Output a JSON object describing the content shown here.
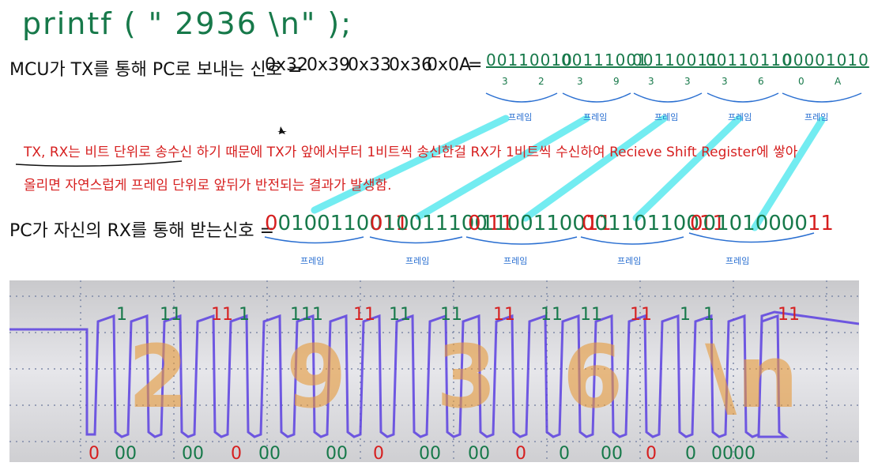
{
  "code": "printf ( \" 2936 \\n\" );",
  "sent": {
    "label": "MCU가 TX를 통해 PC로 보내는 신호 =",
    "hex": [
      "0x32",
      "0x39",
      "0x33",
      "0x36",
      "0x0A"
    ],
    "equals": "=",
    "frames": [
      {
        "bits": "00110010",
        "high": "3",
        "low": "2",
        "caption": "프레임"
      },
      {
        "bits": "00111001",
        "high": "3",
        "low": "9",
        "caption": "프레임"
      },
      {
        "bits": "00110011",
        "high": "3",
        "low": "3",
        "caption": "프레임"
      },
      {
        "bits": "00110110",
        "high": "3",
        "low": "6",
        "caption": "프레임"
      },
      {
        "bits": "00001010",
        "high": "0",
        "low": "A",
        "caption": "프레임"
      }
    ]
  },
  "note": [
    "TX, RX는 비트 단위로 송수신 하기 때문에 TX가 앞에서부터 1비트씩 송신한걸 RX가 1비트씩 수신하여 Recieve Shift Register에 쌓아",
    "올리면 자연스럽게 프레임 단위로 앞뒤가 반전되는 결과가 발생함."
  ],
  "received": {
    "label": "PC가 자신의 RX를 통해 받는신호 =",
    "frames": [
      {
        "start": "0",
        "data": "01001100",
        "stop": "11",
        "caption": "프레임"
      },
      {
        "start": "0",
        "data": "10011100",
        "stop": "11",
        "caption": "프레임"
      },
      {
        "start": "0",
        "data": "11001100",
        "stop": "11",
        "caption": "프레임"
      },
      {
        "start": "0",
        "data": "01101100",
        "stop": "11",
        "caption": "프레임"
      },
      {
        "start": "0",
        "data": "01010000",
        "stop": "11",
        "caption": "프레임"
      }
    ]
  },
  "scope": {
    "top_marks": [
      {
        "text": "1",
        "color": "#17794a"
      },
      {
        "text": "11",
        "color": "#17794a"
      },
      {
        "text": "11",
        "color": "#d61f1f"
      },
      {
        "text": "1",
        "color": "#17794a"
      },
      {
        "text": "111",
        "color": "#17794a"
      },
      {
        "text": "11",
        "color": "#d61f1f"
      },
      {
        "text": "11",
        "color": "#17794a"
      },
      {
        "text": "11",
        "color": "#17794a"
      },
      {
        "text": "11",
        "color": "#d61f1f"
      },
      {
        "text": "11",
        "color": "#17794a"
      },
      {
        "text": "11",
        "color": "#17794a"
      },
      {
        "text": "11",
        "color": "#d61f1f"
      },
      {
        "text": "1",
        "color": "#17794a"
      },
      {
        "text": "1",
        "color": "#17794a"
      },
      {
        "text": "11",
        "color": "#d61f1f"
      }
    ],
    "bottom_marks": [
      {
        "text": "0",
        "color": "#d61f1f"
      },
      {
        "text": "00",
        "color": "#17794a"
      },
      {
        "text": "00",
        "color": "#17794a"
      },
      {
        "text": "0",
        "color": "#d61f1f"
      },
      {
        "text": "00",
        "color": "#17794a"
      },
      {
        "text": "00",
        "color": "#17794a"
      },
      {
        "text": "0",
        "color": "#d61f1f"
      },
      {
        "text": "00",
        "color": "#17794a"
      },
      {
        "text": "00",
        "color": "#17794a"
      },
      {
        "text": "0",
        "color": "#d61f1f"
      },
      {
        "text": "0",
        "color": "#17794a"
      },
      {
        "text": "00",
        "color": "#17794a"
      },
      {
        "text": "0",
        "color": "#d61f1f"
      },
      {
        "text": "0",
        "color": "#17794a"
      },
      {
        "text": "0000",
        "color": "#17794a"
      }
    ],
    "overlay": [
      "2",
      "9",
      "3",
      "6",
      "\\n"
    ]
  }
}
